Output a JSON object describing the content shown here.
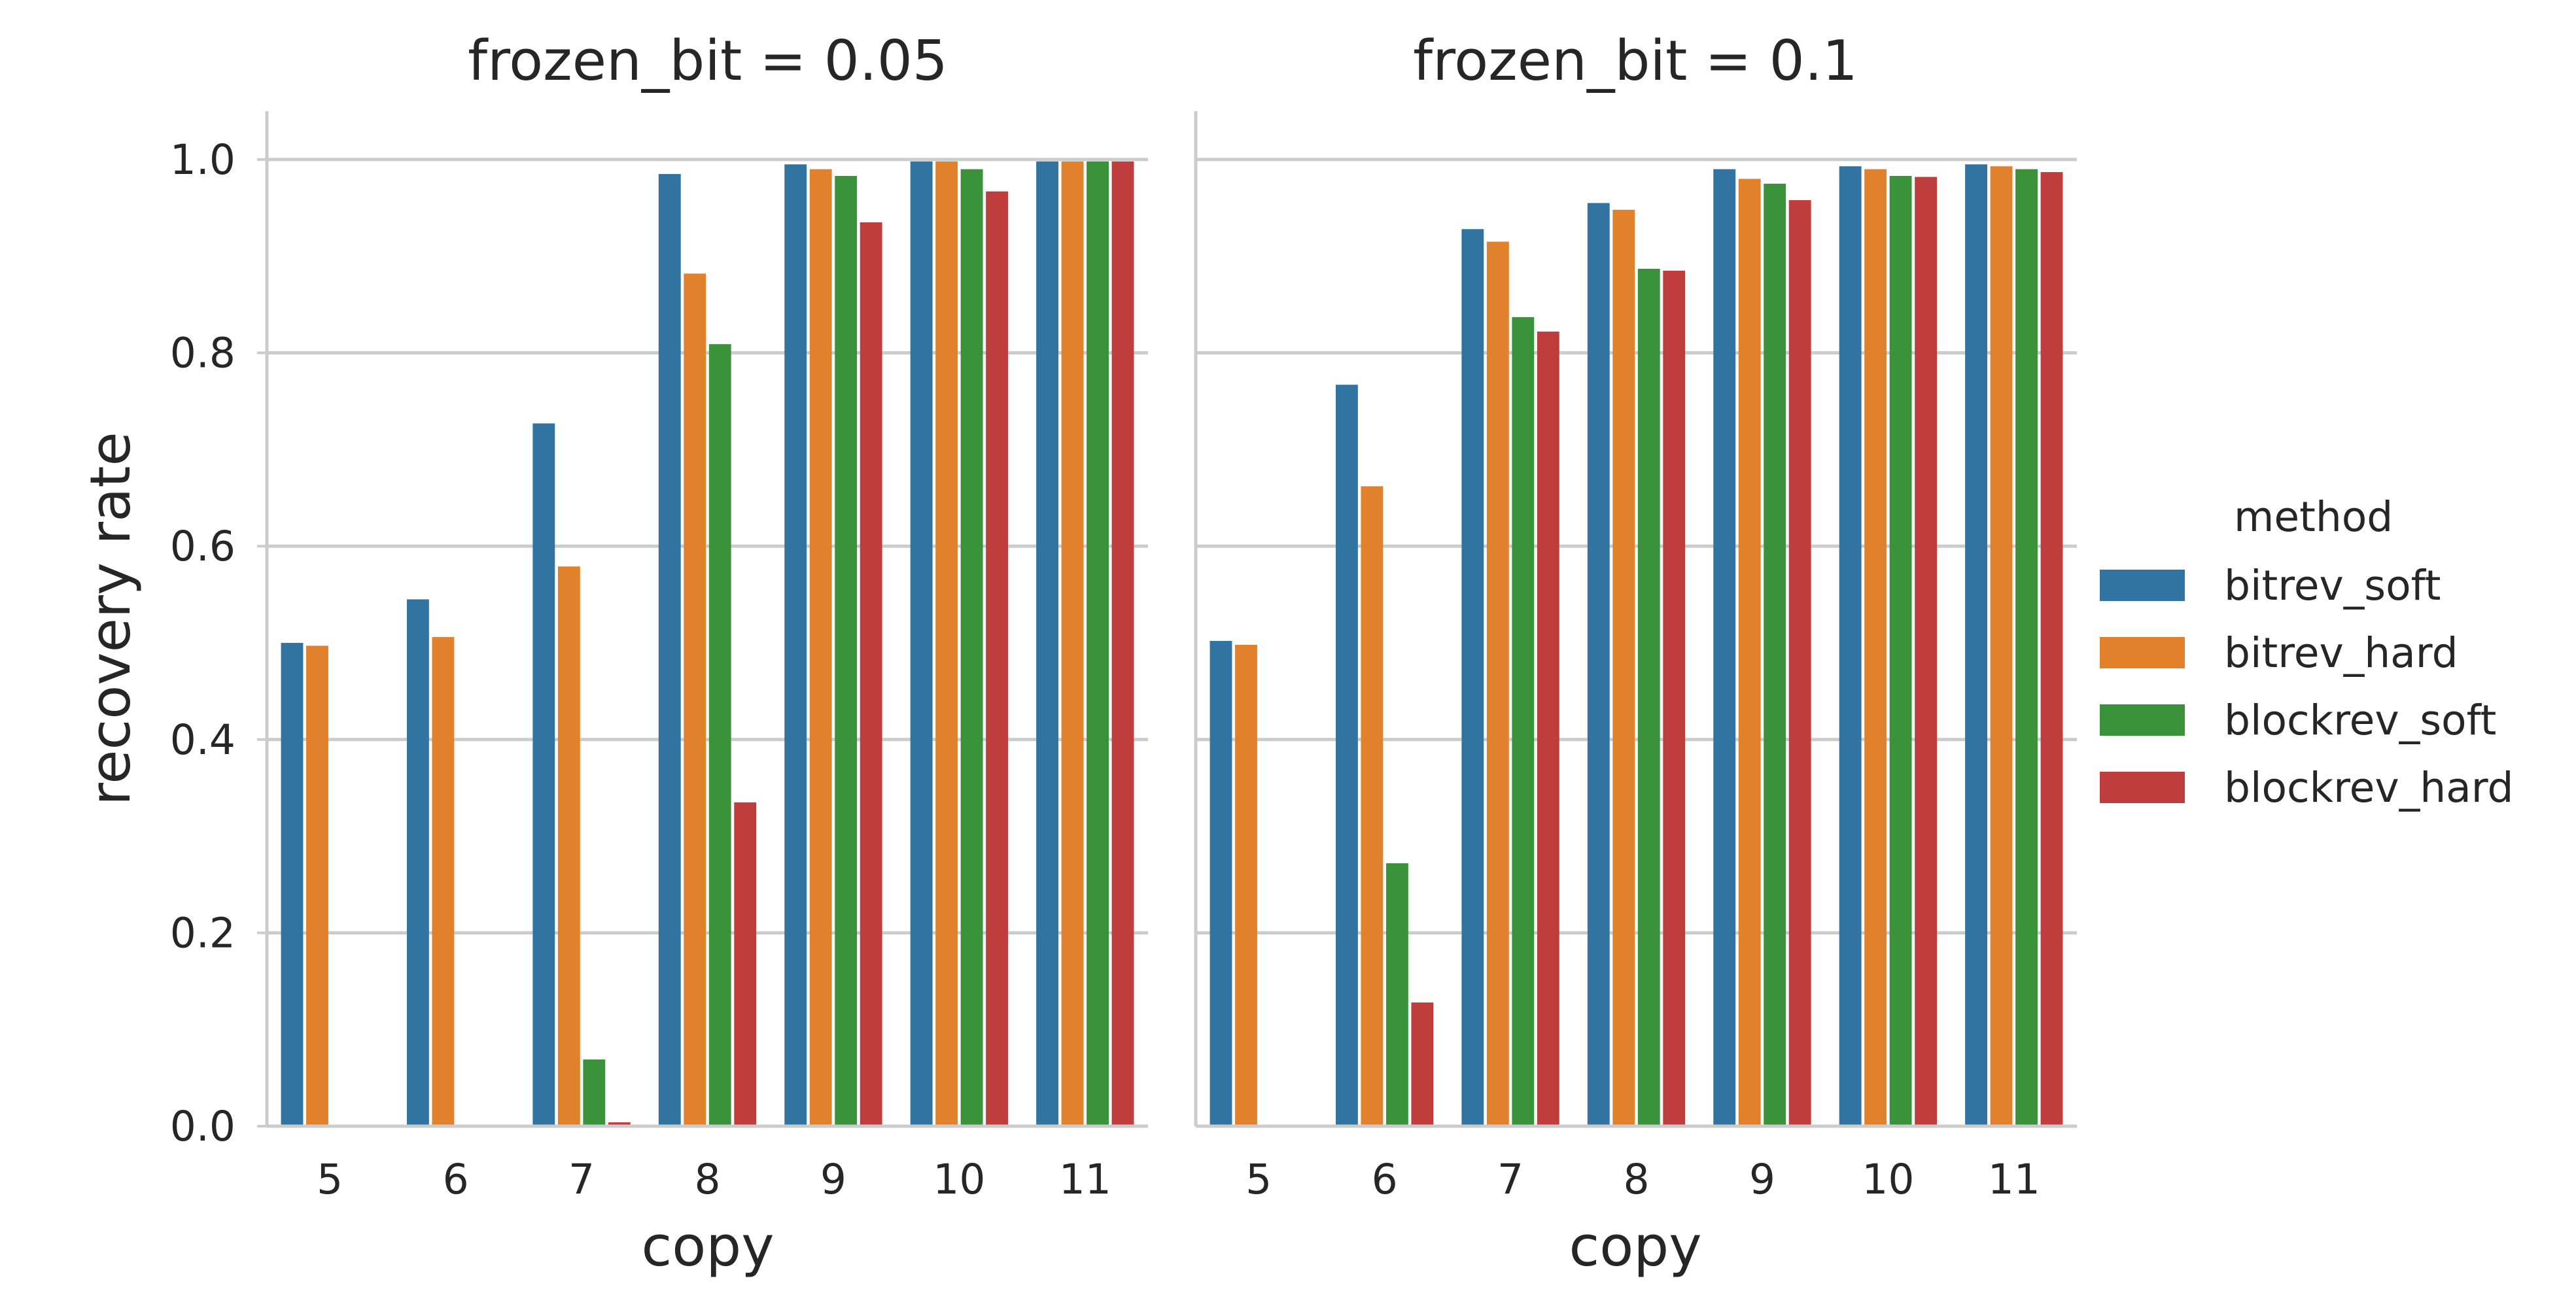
{
  "chart_data": [
    {
      "type": "bar",
      "title": "frozen_bit = 0.05",
      "xlabel": "copy",
      "ylabel": "recovery rate",
      "categories": [
        "5",
        "6",
        "7",
        "8",
        "9",
        "10",
        "11"
      ],
      "ylim": [
        0,
        1.05
      ],
      "yticks": [
        "0.0",
        "0.2",
        "0.4",
        "0.6",
        "0.8",
        "1.0"
      ],
      "grid": true,
      "series": [
        {
          "name": "bitrev_soft",
          "values": [
            0.5,
            0.545,
            0.727,
            0.985,
            0.995,
            0.998,
            0.998
          ]
        },
        {
          "name": "bitrev_hard",
          "values": [
            0.497,
            0.506,
            0.579,
            0.882,
            0.99,
            0.998,
            0.998
          ]
        },
        {
          "name": "blockrev_soft",
          "values": [
            0.0,
            0.0,
            0.069,
            0.809,
            0.983,
            0.99,
            0.998
          ]
        },
        {
          "name": "blockrev_hard",
          "values": [
            0.0,
            0.0,
            0.004,
            0.335,
            0.935,
            0.967,
            0.998
          ]
        }
      ]
    },
    {
      "type": "bar",
      "title": "frozen_bit = 0.1",
      "xlabel": "copy",
      "ylabel": "",
      "categories": [
        "5",
        "6",
        "7",
        "8",
        "9",
        "10",
        "11"
      ],
      "ylim": [
        0,
        1.05
      ],
      "grid": true,
      "series": [
        {
          "name": "bitrev_soft",
          "values": [
            0.502,
            0.767,
            0.928,
            0.955,
            0.99,
            0.993,
            0.995
          ]
        },
        {
          "name": "bitrev_hard",
          "values": [
            0.498,
            0.662,
            0.915,
            0.948,
            0.98,
            0.99,
            0.993
          ]
        },
        {
          "name": "blockrev_soft",
          "values": [
            0.0,
            0.272,
            0.837,
            0.887,
            0.975,
            0.983,
            0.99
          ]
        },
        {
          "name": "blockrev_hard",
          "values": [
            0.0,
            0.128,
            0.822,
            0.885,
            0.958,
            0.982,
            0.987
          ]
        }
      ]
    }
  ],
  "legend": {
    "title": "method",
    "placement": "right",
    "items": [
      {
        "label": "bitrev_soft",
        "color": "#3274a1"
      },
      {
        "label": "bitrev_hard",
        "color": "#e1812c"
      },
      {
        "label": "blockrev_soft",
        "color": "#3a923a"
      },
      {
        "label": "blockrev_hard",
        "color": "#c03d3e"
      }
    ]
  }
}
